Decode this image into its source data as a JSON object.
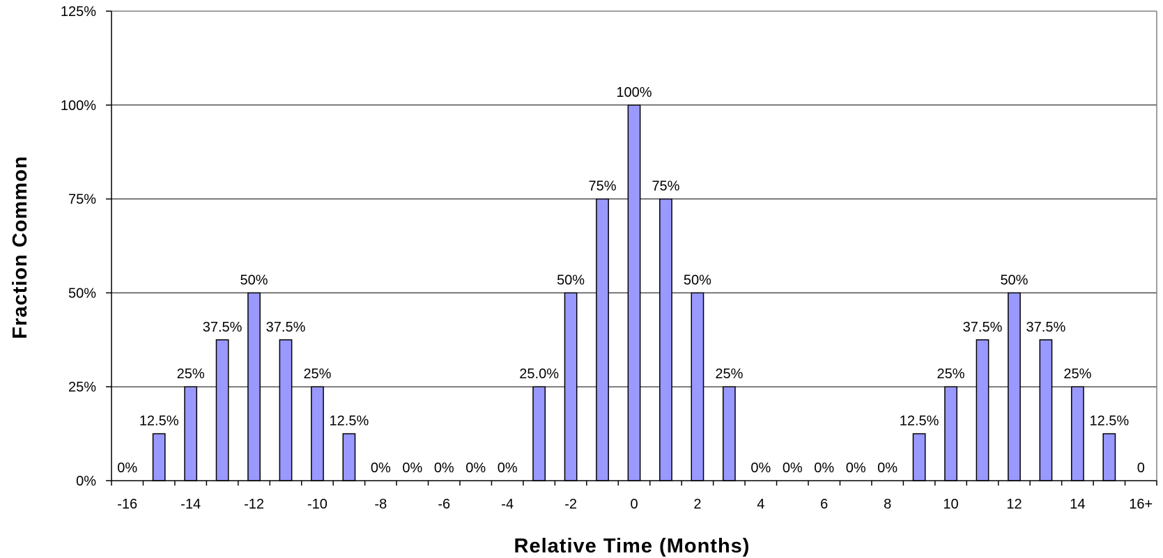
{
  "chart_data": {
    "type": "bar",
    "xlabel": "Relative Time (Months)",
    "ylabel": "Fraction Common",
    "ylim": [
      0,
      125
    ],
    "yticks": [
      "0%",
      "25%",
      "50%",
      "75%",
      "100%",
      "125%"
    ],
    "ytick_values": [
      0,
      25,
      50,
      75,
      100,
      125
    ],
    "xtick_labels": [
      "-16",
      "-14",
      "-12",
      "-10",
      "-8",
      "-6",
      "-4",
      "-2",
      "0",
      "2",
      "4",
      "6",
      "8",
      "10",
      "12",
      "14",
      "16+"
    ],
    "categories": [
      "-16",
      "-15",
      "-14",
      "-13",
      "-12",
      "-11",
      "-10",
      "-9",
      "-8",
      "-7",
      "-6",
      "-5",
      "-4",
      "-3",
      "-2",
      "-1",
      "0",
      "1",
      "2",
      "3",
      "4",
      "5",
      "6",
      "7",
      "8",
      "9",
      "10",
      "11",
      "12",
      "13",
      "14",
      "15",
      "16+"
    ],
    "values": [
      0,
      12.5,
      25,
      37.5,
      50,
      37.5,
      25,
      12.5,
      0,
      0,
      0,
      0,
      0,
      25,
      50,
      75,
      100,
      75,
      50,
      25,
      0,
      0,
      0,
      0,
      0,
      12.5,
      25,
      37.5,
      50,
      37.5,
      25,
      12.5,
      0
    ],
    "data_labels": [
      "0%",
      "12.5%",
      "25%",
      "37.5%",
      "50%",
      "37.5%",
      "25%",
      "12.5%",
      "0%",
      "0%",
      "0%",
      "0%",
      "0%",
      "25.0%",
      "50%",
      "75%",
      "100%",
      "75%",
      "50%",
      "25%",
      "0%",
      "0%",
      "0%",
      "0%",
      "0%",
      "12.5%",
      "25%",
      "37.5%",
      "50%",
      "37.5%",
      "25%",
      "12.5%",
      "0"
    ],
    "grid": true,
    "colors": {
      "bar_fill": "#9999ff",
      "bar_stroke": "#000000",
      "grid": "#000000",
      "axis": "#808080"
    }
  }
}
